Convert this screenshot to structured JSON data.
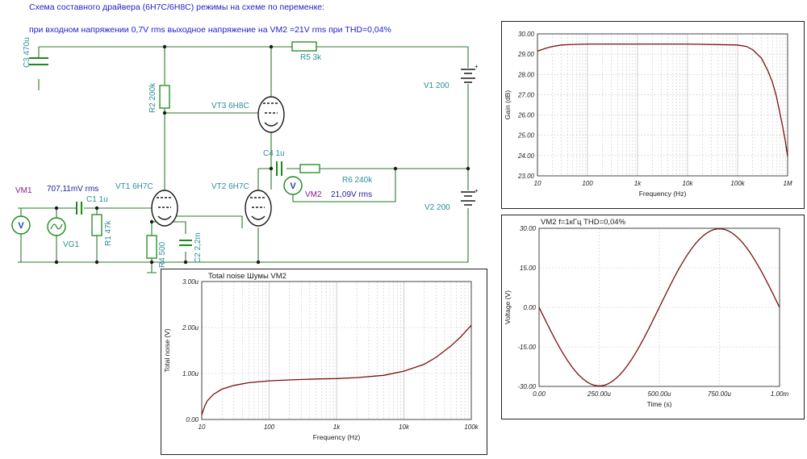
{
  "title": {
    "line1": "Схема  составного  драйвера (6Н7С/6Н8С) режимы на схеме по переменке:",
    "line2": "при входном напряжении  0,7V rms выходное напряжение на VM2 =21V  rms при THD=0,04%"
  },
  "schematic": {
    "c3": "C3 470u",
    "r5": "R5 3k",
    "v1": "V1 200",
    "r2": "R2 200k",
    "vt3": "VT3 6Н8С",
    "c4": "C4 1u",
    "r6": "R6 240k",
    "vm1": "VM1",
    "vm1_value": "707,11mV  rms",
    "c1": "C1 1u",
    "vt1": "VT1 6Н7С",
    "vt2": "VT2 6Н7С",
    "vm2": "VM2",
    "vm2_value": "21,09V  rms",
    "v2": "V2 200",
    "r1": "R1 47k",
    "vg1": "VG1",
    "r4": "R4 500",
    "c2": "C2 2,2m",
    "meter_symbol": "V"
  },
  "colors": {
    "wire": "#2a7a2a",
    "component": "#1a8a1a",
    "tube": "#1a1a1a",
    "label_teal": "#2a8f9a",
    "label_purple": "#8a1a8a",
    "trace": "#7a1010",
    "grid": "#c8c8c8"
  },
  "chart_data": [
    {
      "id": "gain",
      "type": "line",
      "title": "",
      "xlabel": "Frequency (Hz)",
      "ylabel": "Gain (dB)",
      "xscale": "log",
      "xlim": [
        10,
        1000000
      ],
      "ylim": [
        23,
        30
      ],
      "xticks": [
        "10",
        "100",
        "1k",
        "10k",
        "100k",
        "1M"
      ],
      "yticks": [
        "23.00",
        "24.00",
        "25.00",
        "26.00",
        "27.00",
        "28.00",
        "29.00",
        "30.00"
      ],
      "x": [
        10,
        15,
        20,
        30,
        50,
        100,
        1000,
        10000,
        100000,
        150000,
        200000,
        300000,
        400000,
        500000,
        600000,
        700000,
        800000,
        900000,
        1000000
      ],
      "y": [
        29.15,
        29.3,
        29.38,
        29.45,
        29.48,
        29.5,
        29.5,
        29.5,
        29.45,
        29.38,
        29.22,
        28.8,
        28.2,
        27.6,
        26.9,
        26.1,
        25.4,
        24.7,
        23.95
      ]
    },
    {
      "id": "transient",
      "type": "line",
      "title": "VM2  f=1кГц    THD=0,04%",
      "xlabel": "Time (s)",
      "ylabel": "Voltage (V)",
      "xlim": [
        0,
        0.001
      ],
      "ylim": [
        -30,
        30
      ],
      "xticks": [
        "0.00",
        "250.00u",
        "500.00u",
        "750.00u",
        "1.00m"
      ],
      "yticks": [
        "-30.00",
        "-15.00",
        "0.00",
        "15.00",
        "30.00"
      ],
      "amplitude": 29.8,
      "frequency_hz": 1000,
      "phase": "inverted"
    },
    {
      "id": "noise",
      "type": "line",
      "title": "Total noise Шумы  VM2",
      "xlabel": "Frequency (Hz)",
      "ylabel": "Total noise (V)",
      "xscale": "log",
      "xlim": [
        10,
        100000
      ],
      "ylim": [
        0,
        3.0
      ],
      "xticks": [
        "10",
        "100",
        "1k",
        "10k",
        "100k"
      ],
      "yticks": [
        "0.00",
        "1.00u",
        "2.00u",
        "3.00u"
      ],
      "x": [
        10,
        11,
        12,
        15,
        20,
        30,
        50,
        100,
        200,
        500,
        1000,
        2000,
        5000,
        10000,
        20000,
        30000,
        50000,
        70000,
        100000
      ],
      "y": [
        0.1,
        0.28,
        0.4,
        0.55,
        0.66,
        0.74,
        0.8,
        0.84,
        0.86,
        0.88,
        0.89,
        0.91,
        0.96,
        1.05,
        1.2,
        1.35,
        1.6,
        1.8,
        2.05
      ]
    }
  ]
}
